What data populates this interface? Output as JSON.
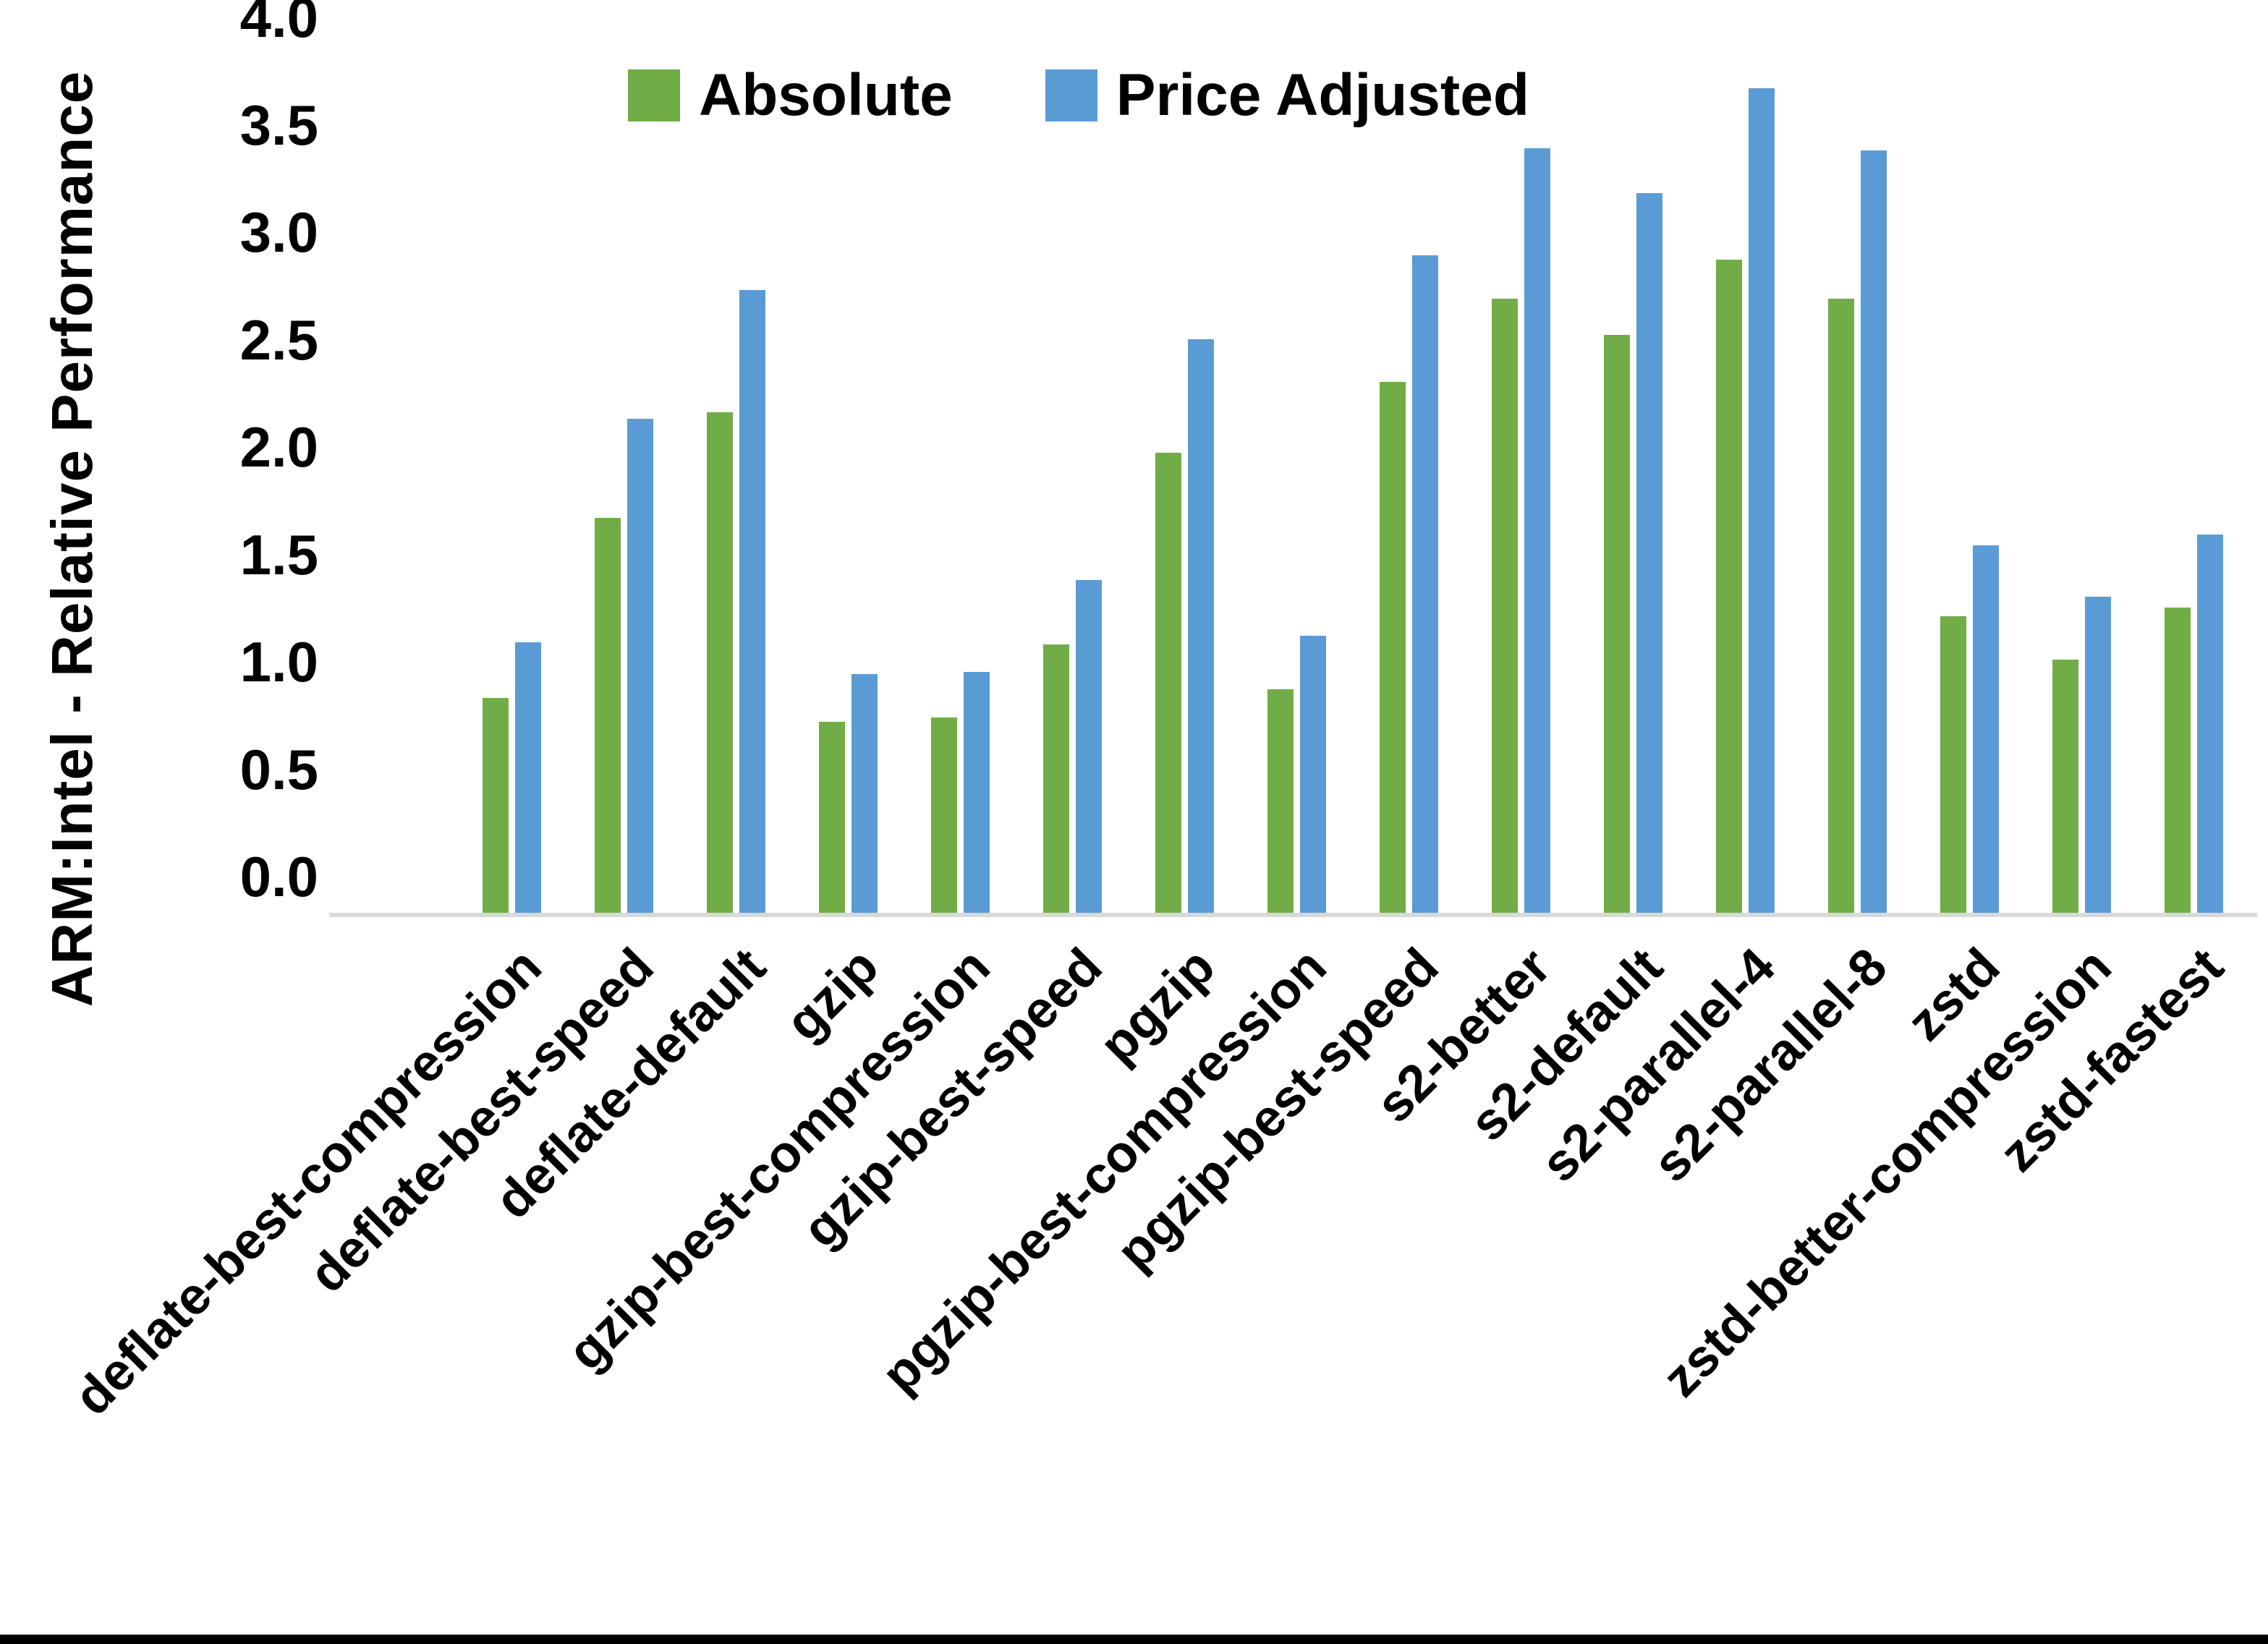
{
  "chart_data": {
    "type": "bar",
    "title": "",
    "xlabel": "",
    "ylabel": "ARM:Intel - Relative Performance",
    "ylim": [
      0,
      4
    ],
    "yticks": [
      "4.0",
      "3.5",
      "3.0",
      "2.5",
      "2.0",
      "1.5",
      "1.0",
      "0.5",
      "0.0"
    ],
    "grid": false,
    "legend_position": "top-center",
    "categories": [
      "deflate-best-compression",
      "deflate-best-speed",
      "deflate-default",
      "gzip",
      "gzip-best-compression",
      "gzip-best-speed",
      "pgzip",
      "pgzip-best-compression",
      "pgzip-best-speed",
      "s2-better",
      "s2-default",
      "s2-parallel-4",
      "s2-parallel-8",
      "zstd",
      "zstd-better-compression",
      "zstd-fastest"
    ],
    "series": [
      {
        "name": "Absolute",
        "color": "#70AD47",
        "values": [
          1.0,
          1.84,
          2.33,
          0.89,
          0.91,
          1.25,
          2.14,
          1.04,
          2.47,
          2.86,
          2.69,
          3.04,
          2.86,
          1.38,
          1.18,
          1.42
        ]
      },
      {
        "name": "Price Adjusted",
        "color": "#5B9BD5",
        "values": [
          1.26,
          2.3,
          2.9,
          1.11,
          1.12,
          1.55,
          2.67,
          1.29,
          3.06,
          3.56,
          3.35,
          3.84,
          3.55,
          1.71,
          1.47,
          1.76
        ]
      }
    ]
  },
  "colors": {
    "background": "#FFFFFF",
    "axis_line": "#D9D9D9",
    "text": "#000000",
    "bottom_border": "#000000"
  }
}
